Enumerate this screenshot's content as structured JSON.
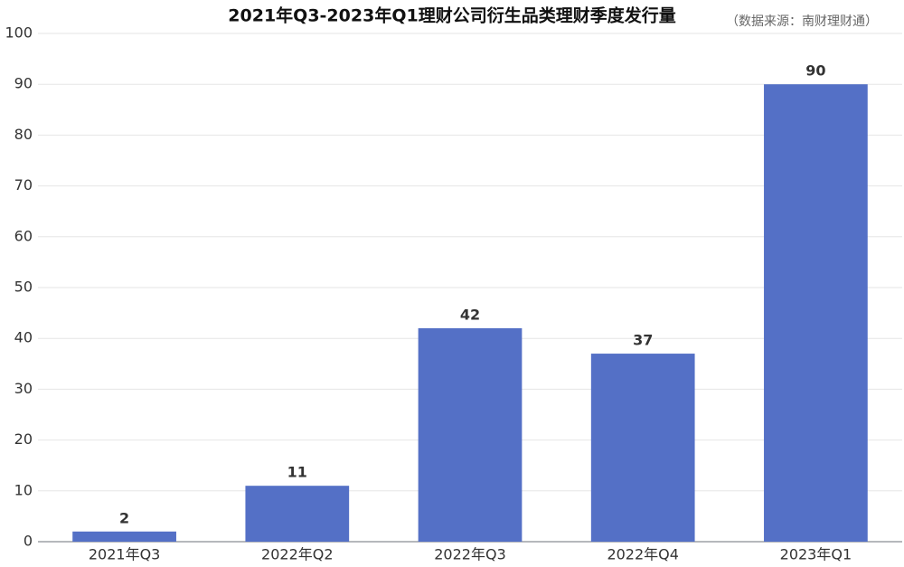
{
  "chart_data": {
    "type": "bar",
    "title": "2021年Q3-2023年Q1理财公司衍生品类理财季度发行量",
    "subtitle": "（数据来源：南财理财通）",
    "categories": [
      "2021年Q3",
      "2022年Q2",
      "2022年Q3",
      "2022年Q4",
      "2023年Q1"
    ],
    "values": [
      2,
      11,
      42,
      37,
      90
    ],
    "color": "#5470c6",
    "ylim": [
      0,
      100
    ],
    "yticks": [
      0,
      10,
      20,
      30,
      40,
      50,
      60,
      70,
      80,
      90,
      100
    ],
    "grid": true,
    "data_labels": true
  }
}
